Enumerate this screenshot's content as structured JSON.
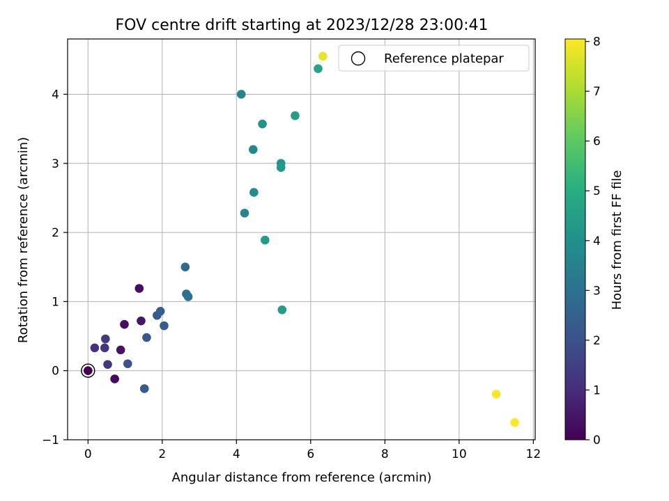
{
  "chart_data": {
    "type": "scatter",
    "title": "FOV centre drift starting at 2023/12/28 23:00:41",
    "xlabel": "Angular distance from reference (arcmin)",
    "ylabel": "Rotation from reference (arcmin)",
    "xlim": [
      -0.55,
      12.05
    ],
    "ylim": [
      -1.0,
      4.8
    ],
    "xticks": [
      0,
      2,
      4,
      6,
      8,
      10,
      12
    ],
    "yticks": [
      -1,
      0,
      1,
      2,
      3,
      4
    ],
    "grid": true,
    "legend": {
      "position": "top-right",
      "entries": [
        "Reference platepar"
      ]
    },
    "reference_point": {
      "x": 0,
      "y": 0
    },
    "colorbar": {
      "label": "Hours from first FF file",
      "colormap": "viridis",
      "range": [
        0,
        8.05
      ],
      "ticks": [
        0,
        1,
        2,
        3,
        4,
        5,
        6,
        7,
        8
      ]
    },
    "points": [
      {
        "x": 0.0,
        "y": 0.0,
        "hours": 0.0
      },
      {
        "x": 0.72,
        "y": -0.12,
        "hours": 0.2
      },
      {
        "x": 0.88,
        "y": 0.3,
        "hours": 0.4
      },
      {
        "x": 0.98,
        "y": 0.67,
        "hours": 0.3
      },
      {
        "x": 1.38,
        "y": 1.19,
        "hours": 0.3
      },
      {
        "x": 1.43,
        "y": 0.72,
        "hours": 0.5
      },
      {
        "x": 0.18,
        "y": 0.33,
        "hours": 1.1
      },
      {
        "x": 0.45,
        "y": 0.33,
        "hours": 1.2
      },
      {
        "x": 0.47,
        "y": 0.46,
        "hours": 1.4
      },
      {
        "x": 0.53,
        "y": 0.09,
        "hours": 1.3
      },
      {
        "x": 1.07,
        "y": 0.1,
        "hours": 2.0
      },
      {
        "x": 1.52,
        "y": -0.26,
        "hours": 2.3
      },
      {
        "x": 1.58,
        "y": 0.48,
        "hours": 2.2
      },
      {
        "x": 1.86,
        "y": 0.8,
        "hours": 2.3
      },
      {
        "x": 1.95,
        "y": 0.86,
        "hours": 2.4
      },
      {
        "x": 2.05,
        "y": 0.65,
        "hours": 2.4
      },
      {
        "x": 2.62,
        "y": 1.5,
        "hours": 2.8
      },
      {
        "x": 2.65,
        "y": 1.11,
        "hours": 2.9
      },
      {
        "x": 2.7,
        "y": 1.07,
        "hours": 3.0
      },
      {
        "x": 4.13,
        "y": 4.0,
        "hours": 3.6
      },
      {
        "x": 4.22,
        "y": 2.28,
        "hours": 3.7
      },
      {
        "x": 4.45,
        "y": 3.2,
        "hours": 3.8
      },
      {
        "x": 4.47,
        "y": 2.58,
        "hours": 3.9
      },
      {
        "x": 4.7,
        "y": 3.57,
        "hours": 4.1
      },
      {
        "x": 4.77,
        "y": 1.89,
        "hours": 4.4
      },
      {
        "x": 5.2,
        "y": 3.0,
        "hours": 4.2
      },
      {
        "x": 5.2,
        "y": 2.94,
        "hours": 4.3
      },
      {
        "x": 5.23,
        "y": 0.88,
        "hours": 4.4
      },
      {
        "x": 5.58,
        "y": 3.69,
        "hours": 4.5
      },
      {
        "x": 6.2,
        "y": 4.37,
        "hours": 4.7
      },
      {
        "x": 6.33,
        "y": 4.55,
        "hours": 7.8
      },
      {
        "x": 11.0,
        "y": -0.34,
        "hours": 8.0
      },
      {
        "x": 11.5,
        "y": -0.75,
        "hours": 8.05
      }
    ]
  }
}
